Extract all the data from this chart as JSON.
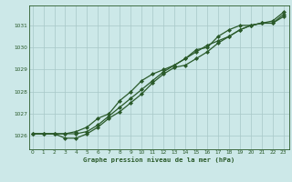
{
  "xlabel": "Graphe pression niveau de la mer (hPa)",
  "bg_color": "#cce8e8",
  "grid_color": "#a8c8c8",
  "line_color": "#2a5a2a",
  "x_ticks": [
    0,
    1,
    2,
    3,
    4,
    5,
    6,
    7,
    8,
    9,
    10,
    11,
    12,
    13,
    14,
    15,
    16,
    17,
    18,
    19,
    20,
    21,
    22,
    23
  ],
  "y_ticks": [
    1026,
    1027,
    1028,
    1029,
    1030,
    1031
  ],
  "ylim": [
    1025.4,
    1031.9
  ],
  "xlim": [
    -0.3,
    23.5
  ],
  "line1": [
    1026.1,
    1026.1,
    1026.1,
    1026.1,
    1026.1,
    1026.2,
    1026.5,
    1026.9,
    1027.3,
    1027.7,
    1028.1,
    1028.5,
    1028.9,
    1029.2,
    1029.5,
    1029.8,
    1030.1,
    1030.3,
    1030.5,
    1030.8,
    1031.0,
    1031.1,
    1031.1,
    1031.4
  ],
  "line2": [
    1026.1,
    1026.1,
    1026.1,
    1025.9,
    1025.9,
    1026.1,
    1026.4,
    1026.8,
    1027.1,
    1027.5,
    1027.9,
    1028.4,
    1028.8,
    1029.1,
    1029.2,
    1029.5,
    1029.8,
    1030.2,
    1030.5,
    1030.8,
    1031.0,
    1031.1,
    1031.1,
    1031.5
  ],
  "line3": [
    1026.1,
    1026.1,
    1026.1,
    1026.1,
    1026.2,
    1026.4,
    1026.8,
    1027.0,
    1027.6,
    1028.0,
    1028.5,
    1028.8,
    1029.0,
    1029.2,
    1029.5,
    1029.9,
    1030.0,
    1030.5,
    1030.8,
    1031.0,
    1031.0,
    1031.1,
    1031.2,
    1031.6
  ]
}
